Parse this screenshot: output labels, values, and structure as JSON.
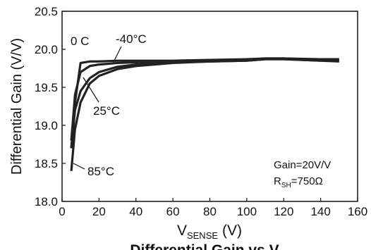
{
  "chart_data": {
    "type": "line",
    "title": "Differential Gain vs V",
    "ylabel": "Differential Gain (V/V)",
    "xlabel": "V",
    "xlabel_sub": "SENSE",
    "xlabel_unit": "(V)",
    "x": [
      5,
      7,
      10,
      15,
      20,
      30,
      40,
      60,
      80,
      100,
      110,
      120,
      140,
      150
    ],
    "series": [
      {
        "name": "-40°C",
        "color": "#222222",
        "values": [
          18.7,
          19.3,
          19.82,
          19.84,
          19.84,
          19.85,
          19.85,
          19.85,
          19.86,
          19.87,
          19.88,
          19.88,
          19.87,
          19.87
        ]
      },
      {
        "name": "0 C",
        "color": "#222222",
        "values": [
          18.8,
          19.4,
          19.7,
          19.78,
          19.8,
          19.82,
          19.83,
          19.84,
          19.85,
          19.86,
          19.88,
          19.88,
          19.86,
          19.86
        ]
      },
      {
        "name": "25°C",
        "color": "#222222",
        "values": [
          18.7,
          19.2,
          19.45,
          19.62,
          19.7,
          19.77,
          19.8,
          19.83,
          19.84,
          19.85,
          19.87,
          19.87,
          19.85,
          19.85
        ]
      },
      {
        "name": "85°C",
        "color": "#222222",
        "values": [
          18.4,
          18.95,
          19.3,
          19.55,
          19.65,
          19.74,
          19.78,
          19.82,
          19.84,
          19.85,
          19.87,
          19.87,
          19.85,
          19.84
        ]
      }
    ],
    "xlim": [
      0,
      160
    ],
    "xticks": [
      0,
      20,
      40,
      60,
      80,
      100,
      120,
      140,
      160
    ],
    "ylim": [
      18.0,
      20.5
    ],
    "yticks": [
      {
        "value": 18.0,
        "label": "18.0"
      },
      18.5,
      {
        "value": 19.0,
        "label": "19.0"
      },
      19.5,
      {
        "value": 20.0,
        "label": "20.0"
      },
      20.5
    ],
    "grid": false,
    "annotations": {
      "gain": "Gain=20V/V",
      "rsh": "R",
      "rsh_sub": "SH",
      "rsh_value": "=750Ω"
    }
  }
}
